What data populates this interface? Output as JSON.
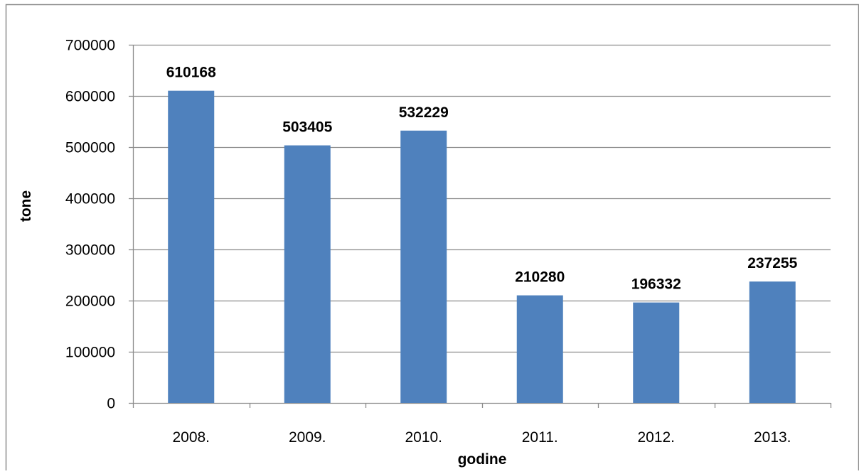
{
  "chart_data": {
    "type": "bar",
    "categories": [
      "2008.",
      "2009.",
      "2010.",
      "2011.",
      "2012.",
      "2013."
    ],
    "values": [
      610168,
      503405,
      532229,
      210280,
      196332,
      237255
    ],
    "data_labels": [
      "610168",
      "503405",
      "532229",
      "210280",
      "196332",
      "237255"
    ],
    "title": "",
    "xlabel": "godine",
    "ylabel": "tone",
    "ylim": [
      0,
      700000
    ],
    "yticks": [
      0,
      100000,
      200000,
      300000,
      400000,
      500000,
      600000,
      700000
    ],
    "ytick_labels": [
      "0",
      "100000",
      "200000",
      "300000",
      "400000",
      "500000",
      "600000",
      "700000"
    ],
    "grid": true,
    "legend": "none",
    "colors": {
      "bar": "#4f81bd",
      "grid": "#8c8c8c",
      "frame": "#8c8c8c"
    }
  }
}
